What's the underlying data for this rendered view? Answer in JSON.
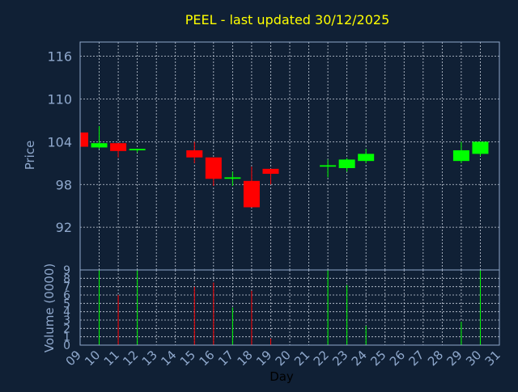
{
  "chart_data": {
    "type": "candlestick",
    "title": "PEEL - last updated 30/12/2025",
    "xlabel": "Day",
    "price_ylabel": "Price",
    "volume_ylabel": "Volume (0000)",
    "x_ticks": [
      "09",
      "10",
      "11",
      "12",
      "13",
      "14",
      "15",
      "16",
      "17",
      "18",
      "19",
      "20",
      "21",
      "22",
      "23",
      "24",
      "25",
      "26",
      "27",
      "28",
      "29",
      "30",
      "31"
    ],
    "price_ticks": [
      92,
      98,
      104,
      110,
      116
    ],
    "price_ylim": [
      86,
      118
    ],
    "volume_ticks": [
      0,
      1,
      2,
      3,
      4,
      5,
      6,
      7,
      8,
      9
    ],
    "volume_ylim": [
      0,
      9
    ],
    "grid": true,
    "colors": {
      "background": "#102035",
      "axis": "#8fa8cc",
      "grid": "#c8d0dc",
      "title": "#ffff00",
      "up": "#00ff00",
      "down": "#ff0000",
      "tick_label": "#8fa8cc"
    },
    "candles": [
      {
        "day": "09",
        "open": 105.3,
        "high": 105.3,
        "low": 103.3,
        "close": 103.3,
        "volume": 0
      },
      {
        "day": "10",
        "open": 103.2,
        "high": 106.2,
        "low": 103.0,
        "close": 103.8,
        "volume": 9.0
      },
      {
        "day": "11",
        "open": 103.8,
        "high": 103.8,
        "low": 101.8,
        "close": 102.7,
        "volume": 6.0
      },
      {
        "day": "12",
        "open": 102.8,
        "high": 103.0,
        "low": 102.5,
        "close": 103.0,
        "volume": 9.0
      },
      {
        "day": "15",
        "open": 102.8,
        "high": 104.0,
        "low": 101.0,
        "close": 101.8,
        "volume": 7.0
      },
      {
        "day": "16",
        "open": 101.8,
        "high": 101.8,
        "low": 97.8,
        "close": 98.8,
        "volume": 7.5
      },
      {
        "day": "17",
        "open": 98.8,
        "high": 99.8,
        "low": 97.8,
        "close": 99.0,
        "volume": 4.5
      },
      {
        "day": "18",
        "open": 98.5,
        "high": 100.5,
        "low": 94.8,
        "close": 94.8,
        "volume": 6.5
      },
      {
        "day": "19",
        "open": 100.2,
        "high": 100.2,
        "low": 98.0,
        "close": 99.5,
        "volume": 0.8
      },
      {
        "day": "22",
        "open": 100.5,
        "high": 101.5,
        "low": 99.0,
        "close": 100.7,
        "volume": 9.0
      },
      {
        "day": "23",
        "open": 100.3,
        "high": 101.7,
        "low": 99.8,
        "close": 101.5,
        "volume": 7.2
      },
      {
        "day": "24",
        "open": 101.3,
        "high": 103.0,
        "low": 101.0,
        "close": 102.3,
        "volume": 2.3
      },
      {
        "day": "29",
        "open": 101.3,
        "high": 104.0,
        "low": 101.0,
        "close": 102.8,
        "volume": 2.8
      },
      {
        "day": "30",
        "open": 102.3,
        "high": 104.0,
        "low": 102.0,
        "close": 104.0,
        "volume": 9.0
      }
    ]
  }
}
